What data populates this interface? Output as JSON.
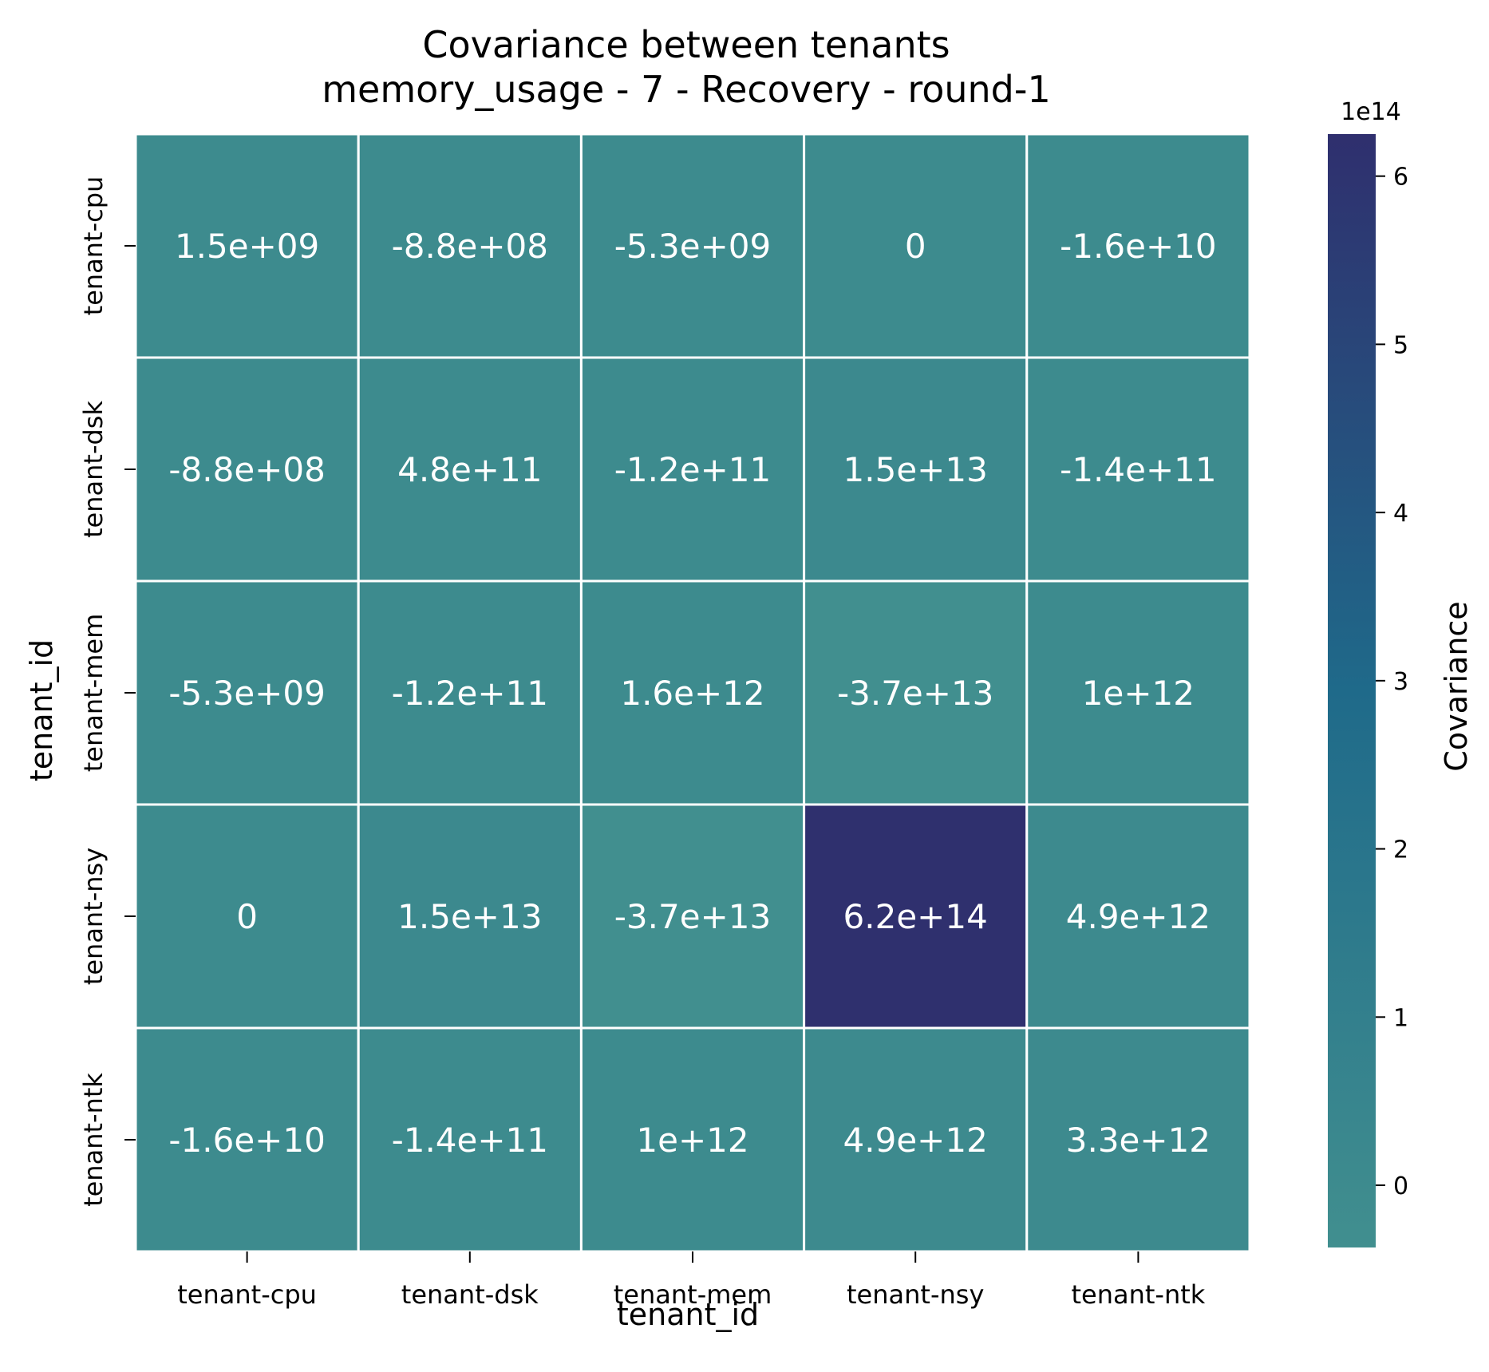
{
  "chart_data": {
    "type": "heatmap",
    "title": "Covariance between tenants",
    "subtitle": "memory_usage - 7 - Recovery - round-1",
    "xlabel": "tenant_id",
    "ylabel": "tenant_id",
    "x_categories": [
      "tenant-cpu",
      "tenant-dsk",
      "tenant-mem",
      "tenant-nsy",
      "tenant-ntk"
    ],
    "y_categories": [
      "tenant-cpu",
      "tenant-dsk",
      "tenant-mem",
      "tenant-nsy",
      "tenant-ntk"
    ],
    "values": [
      [
        1500000000.0,
        -880000000.0,
        -5300000000.0,
        0,
        -16000000000.0
      ],
      [
        -880000000.0,
        480000000000.0,
        -120000000000.0,
        15000000000000.0,
        -140000000000.0
      ],
      [
        -5300000000.0,
        -120000000000.0,
        1600000000000.0,
        -37000000000000.0,
        1000000000000.0
      ],
      [
        0,
        15000000000000.0,
        -37000000000000.0,
        620000000000000.0,
        4900000000000.0
      ],
      [
        -16000000000.0,
        -140000000000.0,
        1000000000000.0,
        4900000000000.0,
        3300000000000.0
      ]
    ],
    "cell_labels": [
      [
        "1.5e+09",
        "-8.8e+08",
        "-5.3e+09",
        "0",
        "-1.6e+10"
      ],
      [
        "-8.8e+08",
        "4.8e+11",
        "-1.2e+11",
        "1.5e+13",
        "-1.4e+11"
      ],
      [
        "-5.3e+09",
        "-1.2e+11",
        "1.6e+12",
        "-3.7e+13",
        "1e+12"
      ],
      [
        "0",
        "1.5e+13",
        "-3.7e+13",
        "6.2e+14",
        "4.9e+12"
      ],
      [
        "-1.6e+10",
        "-1.4e+11",
        "1e+12",
        "4.9e+12",
        "3.3e+12"
      ]
    ],
    "colorbar": {
      "label": "Covariance",
      "offset_text": "1e14",
      "scale": 100000000000000.0,
      "vmin": -0.37,
      "vmax": 6.25,
      "ticks": [
        0,
        1,
        2,
        3,
        4,
        5,
        6
      ],
      "tick_labels": [
        "0",
        "1",
        "2",
        "3",
        "4",
        "5",
        "6"
      ],
      "colormap": [
        "#418f8f",
        "#1f6a8a",
        "#2f2f6e"
      ]
    },
    "colors": {
      "cell_text": "#ffffff",
      "gridline": "#ffffff",
      "axis_text": "#000000"
    }
  }
}
